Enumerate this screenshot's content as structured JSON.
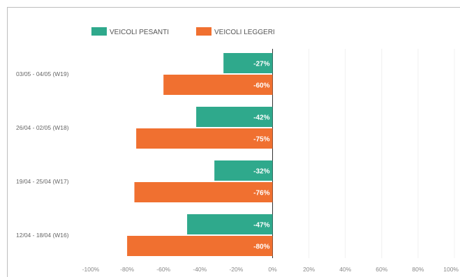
{
  "chart_data": {
    "type": "bar",
    "orientation": "horizontal",
    "categories": [
      "03/05 - 04/05 (W19)",
      "26/04 - 02/05 (W18)",
      "19/04 - 25/04 (W17)",
      "12/04 - 18/04 (W16)"
    ],
    "series": [
      {
        "name": "VEICOLI PESANTI",
        "color": "#2fa98c",
        "values": [
          -27,
          -42,
          -32,
          -47
        ],
        "labels": [
          "-27%",
          "-42%",
          "-32%",
          "-47%"
        ]
      },
      {
        "name": "VEICOLI LEGGERI",
        "color": "#f07030",
        "values": [
          -60,
          -75,
          -76,
          -80
        ],
        "labels": [
          "-60%",
          "-75%",
          "-76%",
          "-80%"
        ]
      }
    ],
    "xlim": [
      -100,
      100
    ],
    "x_ticks": [
      -100,
      -80,
      -60,
      -40,
      -20,
      0,
      20,
      40,
      60,
      80,
      100
    ],
    "x_tick_labels": [
      "-100%",
      "-80%",
      "-60%",
      "-40%",
      "-20%",
      "0%",
      "20%",
      "40%",
      "60%",
      "80%",
      "100%"
    ],
    "grid": true,
    "legend": "top-left"
  }
}
